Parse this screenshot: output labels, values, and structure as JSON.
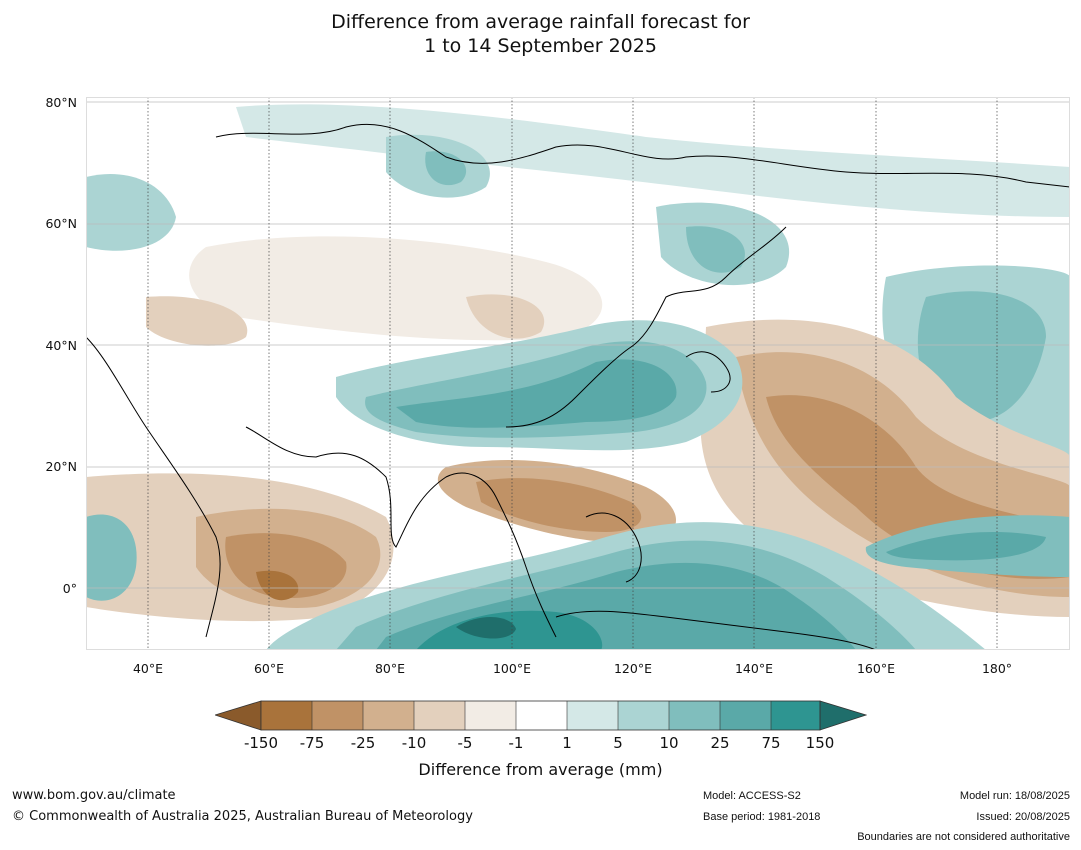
{
  "title": {
    "line1": "Difference from average rainfall forecast for",
    "line2": "1 to 14 September 2025"
  },
  "map": {
    "lat_labels": [
      "80°N",
      "60°N",
      "40°N",
      "20°N",
      "0°"
    ],
    "lon_labels": [
      "40°E",
      "60°E",
      "80°E",
      "100°E",
      "120°E",
      "140°E",
      "160°E",
      "180°"
    ],
    "colors": {
      "dry_extreme": "#8a5a2b",
      "dry_150": "#a9733b",
      "dry_75": "#c09266",
      "dry_25": "#d2b08e",
      "dry_10": "#e3d0bd",
      "dry_5": "#f2ece5",
      "neutral": "#ffffff",
      "wet_5": "#d4e8e7",
      "wet_10": "#abd4d3",
      "wet_25": "#80bebd",
      "wet_75": "#5aa9a8",
      "wet_150": "#2e9591",
      "wet_extreme": "#1f6e6b"
    }
  },
  "colorbar": {
    "tick_labels": [
      "-150",
      "-75",
      "-25",
      "-10",
      "-5",
      "-1",
      "1",
      "5",
      "10",
      "25",
      "75",
      "150"
    ],
    "title": "Difference from average (mm)"
  },
  "footer": {
    "website": "www.bom.gov.au/climate",
    "copyright": "© Commonwealth of Australia 2025, Australian Bureau of Meteorology",
    "model": "Model: ACCESS-S2",
    "base_period": "Base period: 1981-2018",
    "model_run": "Model run: 18/08/2025",
    "issued": "Issued: 20/08/2025",
    "disclaimer": "Boundaries are not considered authoritative"
  }
}
